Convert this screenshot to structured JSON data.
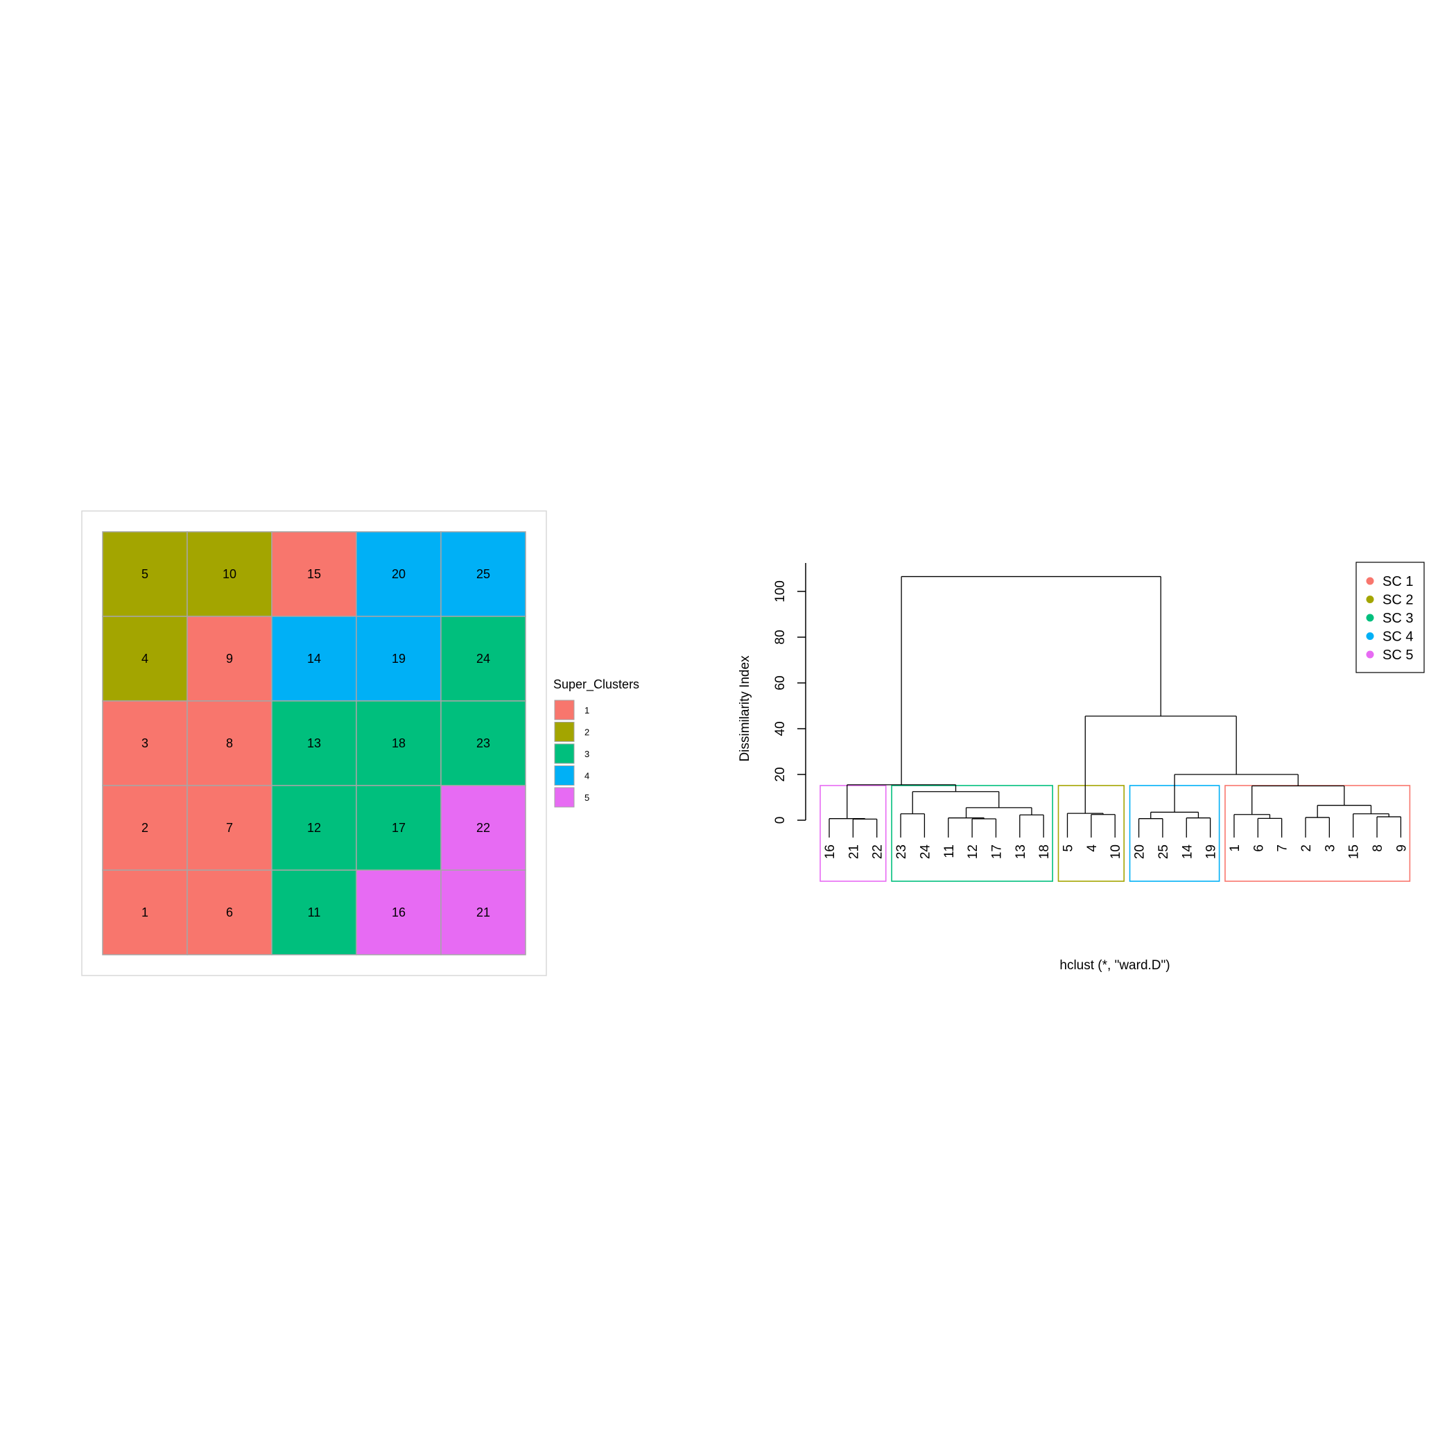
{
  "colors": {
    "sc1": "#F8766D",
    "sc2": "#A3A500",
    "sc3": "#00BF7D",
    "sc4": "#00B0F6",
    "sc5": "#E76BF3",
    "frame": "#d9d9d9",
    "cell_border": "#a6a6a6",
    "ink": "#000000"
  },
  "chart_data": [
    {
      "type": "heatmap",
      "description_free": true,
      "rows": 5,
      "cols": 5,
      "grid": [
        [
          5,
          10,
          15,
          20,
          25
        ],
        [
          4,
          9,
          14,
          19,
          24
        ],
        [
          3,
          8,
          13,
          18,
          23
        ],
        [
          2,
          7,
          12,
          17,
          22
        ],
        [
          1,
          6,
          11,
          16,
          21
        ]
      ],
      "assignment": {
        "1": 1,
        "2": 1,
        "3": 1,
        "6": 1,
        "7": 1,
        "8": 1,
        "9": 1,
        "15": 1,
        "4": 2,
        "5": 2,
        "10": 2,
        "11": 3,
        "12": 3,
        "13": 3,
        "17": 3,
        "18": 3,
        "23": 3,
        "24": 3,
        "14": 4,
        "19": 4,
        "20": 4,
        "25": 4,
        "16": 5,
        "21": 5,
        "22": 5
      },
      "legend": {
        "title": "Super_Clusters",
        "entries": [
          "1",
          "2",
          "3",
          "4",
          "5"
        ]
      }
    },
    {
      "type": "dendrogram",
      "ylabel": "Dissimilarity Index",
      "xlabel": "hclust (*, \"ward.D\")",
      "yticks": [
        0,
        20,
        40,
        60,
        80,
        100
      ],
      "ylim": [
        0,
        107
      ],
      "leaf_order": [
        "16",
        "21",
        "22",
        "23",
        "24",
        "11",
        "12",
        "17",
        "13",
        "18",
        "5",
        "4",
        "10",
        "20",
        "25",
        "14",
        "19",
        "1",
        "6",
        "7",
        "2",
        "3",
        "15",
        "8",
        "9"
      ],
      "merges": [
        {
          "leaves": [
            "21",
            "22"
          ],
          "height": 0.5
        },
        {
          "leaves": [
            "16",
            "21",
            "22"
          ],
          "height": 0.7
        },
        {
          "leaves": [
            "23",
            "24"
          ],
          "height": 2.8
        },
        {
          "leaves": [
            "12",
            "17"
          ],
          "height": 0.6
        },
        {
          "leaves": [
            "11",
            "12",
            "17"
          ],
          "height": 1.0
        },
        {
          "leaves": [
            "13",
            "18"
          ],
          "height": 2.3
        },
        {
          "leaves": [
            "11",
            "12",
            "17",
            "13",
            "18"
          ],
          "height": 5.5
        },
        {
          "leaves": [
            "23",
            "24",
            "11",
            "12",
            "17",
            "13",
            "18"
          ],
          "height": 12.5
        },
        {
          "leaves": [
            "16",
            "21",
            "22",
            "23",
            "24",
            "11",
            "12",
            "17",
            "13",
            "18"
          ],
          "height": 15.5
        },
        {
          "leaves": [
            "4",
            "10"
          ],
          "height": 2.5
        },
        {
          "leaves": [
            "5",
            "4",
            "10"
          ],
          "height": 3.0
        },
        {
          "leaves": [
            "14",
            "19"
          ],
          "height": 1.0
        },
        {
          "leaves": [
            "20",
            "25"
          ],
          "height": 0.7
        },
        {
          "leaves": [
            "20",
            "25",
            "14",
            "19"
          ],
          "height": 3.5
        },
        {
          "leaves": [
            "6",
            "7"
          ],
          "height": 0.8
        },
        {
          "leaves": [
            "1",
            "6",
            "7"
          ],
          "height": 2.5
        },
        {
          "leaves": [
            "2",
            "3"
          ],
          "height": 1.2
        },
        {
          "leaves": [
            "8",
            "9"
          ],
          "height": 1.5
        },
        {
          "leaves": [
            "15",
            "8",
            "9"
          ],
          "height": 2.8
        },
        {
          "leaves": [
            "2",
            "3",
            "15",
            "8",
            "9"
          ],
          "height": 6.5
        },
        {
          "leaves": [
            "1",
            "6",
            "7",
            "2",
            "3",
            "15",
            "8",
            "9"
          ],
          "height": 15.0
        },
        {
          "leaves": [
            "20",
            "25",
            "14",
            "19",
            "1",
            "6",
            "7",
            "2",
            "3",
            "15",
            "8",
            "9"
          ],
          "height": 20.0
        },
        {
          "leaves": [
            "5",
            "4",
            "10",
            "20",
            "25",
            "14",
            "19",
            "1",
            "6",
            "7",
            "2",
            "3",
            "15",
            "8",
            "9"
          ],
          "height": 45.5
        },
        {
          "leaves": [
            "all"
          ],
          "height": 106.5
        }
      ],
      "cluster_boxes": [
        {
          "cluster": 5,
          "leaves": [
            "16",
            "21",
            "22"
          ]
        },
        {
          "cluster": 3,
          "leaves": [
            "23",
            "24",
            "11",
            "12",
            "17",
            "13",
            "18"
          ]
        },
        {
          "cluster": 2,
          "leaves": [
            "5",
            "4",
            "10"
          ]
        },
        {
          "cluster": 4,
          "leaves": [
            "20",
            "25",
            "14",
            "19"
          ]
        },
        {
          "cluster": 1,
          "leaves": [
            "1",
            "6",
            "7",
            "2",
            "3",
            "15",
            "8",
            "9"
          ]
        }
      ],
      "legend": {
        "placement": "top-right",
        "entries": [
          "SC 1",
          "SC 2",
          "SC 3",
          "SC 4",
          "SC 5"
        ]
      }
    }
  ]
}
